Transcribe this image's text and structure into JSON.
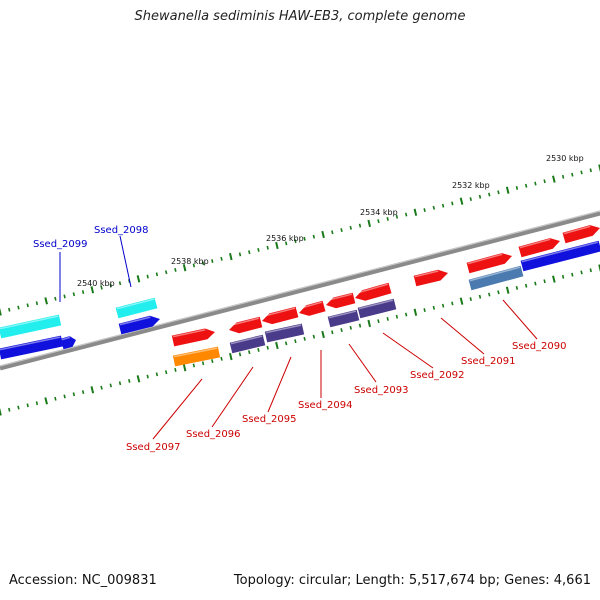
{
  "title": "Shewanella sediminis HAW-EB3, complete genome",
  "accession": "Accession: NC_009831",
  "summary": "Topology: circular; Length: 5,517,674 bp; Genes: 4,661",
  "colors": {
    "backbone": "#8a8a8a",
    "tick": "#1a7a1a",
    "forward_label": "#0000cc",
    "reverse_label": "#cc0000",
    "gene_red": "#ee1111",
    "gene_cyan": "#22eeee",
    "gene_blue": "#1111dd",
    "gene_orange": "#ff8800",
    "gene_slate": "#4a3a8a",
    "gene_steel": "#4a7ab0"
  },
  "scale_labels": [
    "2530 kbp",
    "2532 kbp",
    "2534 kbp",
    "2536 kbp",
    "2538 kbp",
    "2540 kbp"
  ],
  "gene_labels": {
    "forward": [
      "Ssed_2099",
      "Ssed_2098"
    ],
    "reverse": [
      "Ssed_2090",
      "Ssed_2091",
      "Ssed_2092",
      "Ssed_2093",
      "Ssed_2094",
      "Ssed_2095",
      "Ssed_2096",
      "Ssed_2097"
    ]
  }
}
